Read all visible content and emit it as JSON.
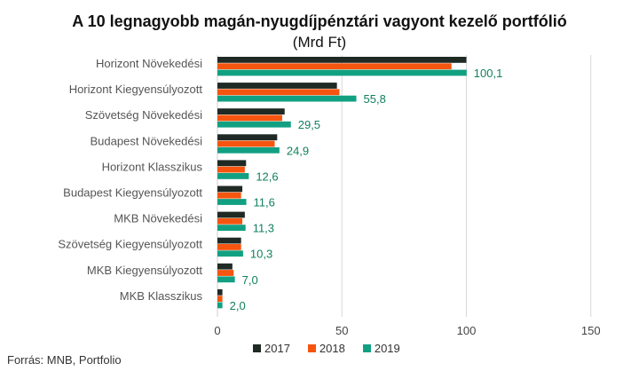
{
  "chart_data": {
    "type": "bar",
    "orientation": "horizontal",
    "title": "A 10 legnagyobb magán-nyugdíjpénztári vagyont kezelő portfólió",
    "subtitle": "(Mrd Ft)",
    "categories": [
      "Horizont Növekedési",
      "Horizont Kiegyensúlyozott",
      "Szövetség Növekedési",
      "Budapest Növekedési",
      "Horizont  Klasszikus",
      "Budapest Kiegyensúlyozott",
      "MKB Növekedési",
      "Szövetség Kiegyensúlyozott",
      "MKB Kiegyensúlyozott",
      "MKB  Klasszikus"
    ],
    "series": [
      {
        "name": "2017",
        "color": "#1f2a24",
        "values": [
          100,
          48,
          27,
          24,
          11.5,
          10,
          11,
          9.5,
          6,
          2
        ]
      },
      {
        "name": "2018",
        "color": "#f5550f",
        "values": [
          94,
          49,
          26,
          23,
          11,
          9.5,
          10,
          9.5,
          6.5,
          2
        ]
      },
      {
        "name": "2019",
        "color": "#12a082",
        "values": [
          100.1,
          55.8,
          29.5,
          24.9,
          12.6,
          11.6,
          11.3,
          10.3,
          7.0,
          2.0
        ]
      }
    ],
    "data_labels": [
      "100,1",
      "55,8",
      "29,5",
      "24,9",
      "12,6",
      "11,6",
      "11,3",
      "10,3",
      "7,0",
      "2,0"
    ],
    "xlim": [
      0,
      150
    ],
    "xticks": [
      0,
      50,
      100,
      150
    ],
    "grid": true,
    "legend_position": "bottom"
  },
  "source": "Forrás: MNB, Portfolio"
}
